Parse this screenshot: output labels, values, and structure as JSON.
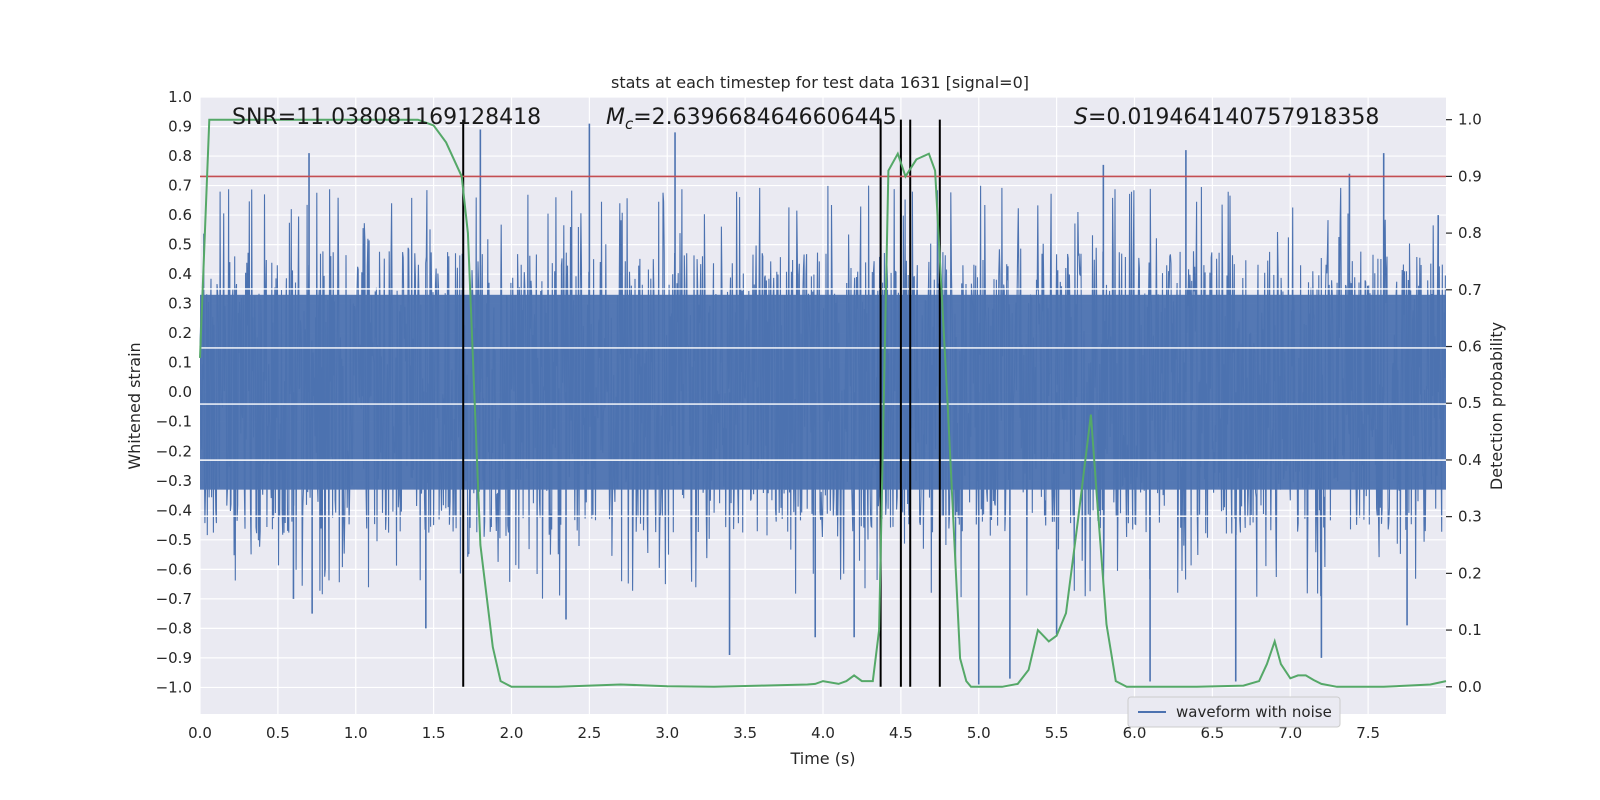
{
  "chart_data": {
    "type": "line",
    "title": "stats at each timestep for test data 1631 [signal=0]",
    "xlabel": "Time (s)",
    "ylabel": "Whitened strain",
    "ylabel_right": "Detection probability",
    "xlim": [
      0,
      8
    ],
    "ylim": [
      -1.09,
      1.0
    ],
    "ylim_right": [
      -0.048,
      1.04
    ],
    "xticks": [
      0.0,
      0.5,
      1.0,
      1.5,
      2.0,
      2.5,
      3.0,
      3.5,
      4.0,
      4.5,
      5.0,
      5.5,
      6.0,
      6.5,
      7.0,
      7.5
    ],
    "xtick_labels": [
      "0.0",
      "0.5",
      "1.0",
      "1.5",
      "2.0",
      "2.5",
      "3.0",
      "3.5",
      "4.0",
      "4.5",
      "5.0",
      "5.5",
      "6.0",
      "6.5",
      "7.0",
      "7.5"
    ],
    "yticks": [
      1.0,
      0.9,
      0.8,
      0.7,
      0.6,
      0.5,
      0.4,
      0.3,
      0.2,
      0.1,
      0.0,
      -0.1,
      -0.2,
      -0.3,
      -0.4,
      -0.5,
      -0.6,
      -0.7,
      -0.8,
      -0.9,
      -1.0
    ],
    "ytick_labels": [
      "1.0",
      "0.9",
      "0.8",
      "0.7",
      "0.6",
      "0.5",
      "0.4",
      "0.3",
      "0.2",
      "0.1",
      "0.0",
      "−0.1",
      "−0.2",
      "−0.3",
      "−0.4",
      "−0.5",
      "−0.6",
      "−0.7",
      "−0.8",
      "−0.9",
      "−1.0"
    ],
    "yticks_right": [
      1.0,
      0.9,
      0.8,
      0.7,
      0.6,
      0.5,
      0.4,
      0.3,
      0.2,
      0.1,
      0.0
    ],
    "ytick_labels_right": [
      "1.0",
      "0.9",
      "0.8",
      "0.7",
      "0.6",
      "0.5",
      "0.4",
      "0.3",
      "0.2",
      "0.1",
      "0.0"
    ],
    "annotations": {
      "snr": "SNR=11.038081169128418",
      "mc_symbol": "M",
      "mc_subscript": "c",
      "mc_value": "=2.6396684646606445",
      "s_symbol": "S",
      "s_value": "=0.019464140757918358"
    },
    "threshold": 0.9,
    "threshold_color": "#c44e52",
    "vlines_x": [
      1.69,
      4.37,
      4.5,
      4.56,
      4.75
    ],
    "waveform": {
      "name": "waveform with noise",
      "color": "#4c72b0",
      "samples": 2048,
      "core_amplitude": 0.33,
      "spikes": [
        {
          "t": 0.7,
          "v": 0.81
        },
        {
          "t": 0.72,
          "v": -0.75
        },
        {
          "t": 0.6,
          "v": -0.7
        },
        {
          "t": 1.45,
          "v": -0.8
        },
        {
          "t": 1.8,
          "v": 0.89
        },
        {
          "t": 2.35,
          "v": -0.77
        },
        {
          "t": 2.5,
          "v": 0.91
        },
        {
          "t": 3.05,
          "v": 0.88
        },
        {
          "t": 3.4,
          "v": -0.89
        },
        {
          "t": 3.95,
          "v": -0.83
        },
        {
          "t": 4.2,
          "v": -0.83
        },
        {
          "t": 4.5,
          "v": 0.84
        },
        {
          "t": 5.0,
          "v": -0.99
        },
        {
          "t": 5.2,
          "v": -0.97
        },
        {
          "t": 5.5,
          "v": -0.82
        },
        {
          "t": 5.8,
          "v": 0.77
        },
        {
          "t": 6.1,
          "v": -0.98
        },
        {
          "t": 6.33,
          "v": 0.82
        },
        {
          "t": 6.65,
          "v": -0.98
        },
        {
          "t": 7.2,
          "v": -0.9
        },
        {
          "t": 7.38,
          "v": 0.74
        },
        {
          "t": 7.6,
          "v": 0.81
        },
        {
          "t": 7.75,
          "v": -0.79
        },
        {
          "t": 7.95,
          "v": 0.6
        }
      ]
    },
    "detection": {
      "name": "detection probability",
      "color": "#55a868",
      "t": [
        0,
        0.06,
        0.1,
        0.2,
        0.5,
        1.0,
        1.4,
        1.5,
        1.58,
        1.68,
        1.72,
        1.8,
        1.88,
        1.93,
        2.0,
        2.3,
        2.5,
        2.7,
        3.0,
        3.3,
        3.6,
        3.9,
        3.95,
        4.0,
        4.1,
        4.15,
        4.2,
        4.25,
        4.32,
        4.36,
        4.42,
        4.48,
        4.53,
        4.6,
        4.68,
        4.72,
        4.8,
        4.88,
        4.92,
        4.95,
        5.05,
        5.15,
        5.25,
        5.32,
        5.38,
        5.45,
        5.5,
        5.56,
        5.64,
        5.72,
        5.76,
        5.82,
        5.88,
        5.95,
        6.1,
        6.4,
        6.7,
        6.8,
        6.85,
        6.9,
        6.94,
        7.0,
        7.05,
        7.1,
        7.15,
        7.2,
        7.3,
        7.6,
        7.9,
        8.0
      ],
      "p": [
        0.58,
        1.0,
        1.0,
        1.0,
        1.0,
        1.0,
        1.0,
        0.99,
        0.96,
        0.9,
        0.8,
        0.25,
        0.07,
        0.01,
        0.0,
        0.0,
        0.002,
        0.004,
        0.001,
        0.0,
        0.002,
        0.004,
        0.005,
        0.01,
        0.005,
        0.01,
        0.02,
        0.01,
        0.01,
        0.1,
        0.91,
        0.94,
        0.9,
        0.93,
        0.94,
        0.91,
        0.5,
        0.05,
        0.01,
        0.0,
        0.0,
        0.0,
        0.005,
        0.03,
        0.1,
        0.08,
        0.09,
        0.13,
        0.3,
        0.48,
        0.33,
        0.11,
        0.01,
        0.0,
        0.0,
        0.0,
        0.002,
        0.01,
        0.04,
        0.08,
        0.04,
        0.015,
        0.02,
        0.02,
        0.012,
        0.005,
        0.0,
        0.0,
        0.004,
        0.01
      ]
    },
    "legend": {
      "label": "waveform with noise",
      "position": "lower-right"
    },
    "grid": true
  }
}
